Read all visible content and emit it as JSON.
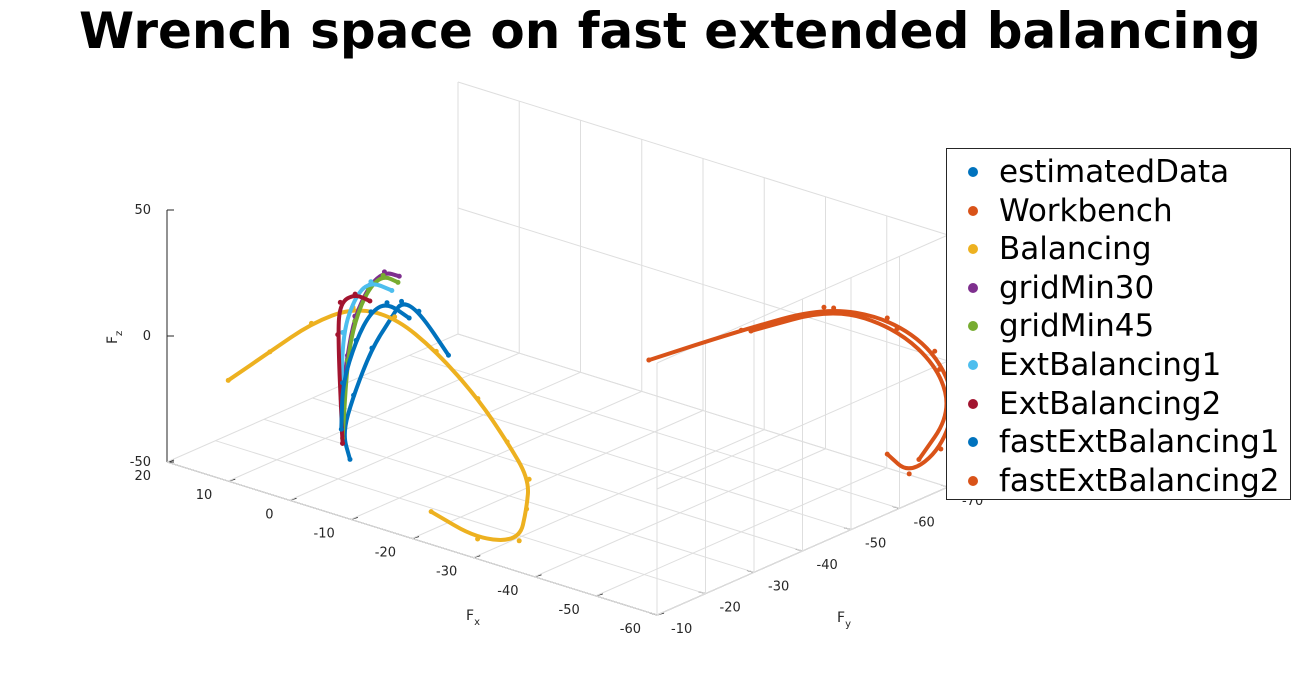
{
  "chart_data": {
    "type": "scatter",
    "title": "Wrench space on fast extended balancing",
    "xlabel": "F",
    "xlabel_sub": "x",
    "ylabel": "F",
    "ylabel_sub": "y",
    "zlabel": "F",
    "zlabel_sub": "z",
    "xlim": [
      -60,
      20
    ],
    "ylim": [
      -70,
      -10
    ],
    "zlim": [
      -50,
      50
    ],
    "xticks": [
      "20",
      "10",
      "0",
      "-10",
      "-20",
      "-30",
      "-40",
      "-50",
      "-60"
    ],
    "yticks": [
      "-10",
      "-20",
      "-30",
      "-40",
      "-50",
      "-60",
      "-70"
    ],
    "zticks": [
      "50",
      "0",
      "-50"
    ],
    "grid": true,
    "legend_position": "right",
    "series": [
      {
        "name": "estimatedData",
        "color": "#0072bd",
        "x": [
          -22,
          -14,
          -8,
          -4,
          0,
          3,
          4,
          2
        ],
        "y": [
          -15,
          -19,
          -23,
          -26,
          -27,
          -27,
          -26,
          -25
        ],
        "z": [
          20,
          28,
          24,
          12,
          -4,
          -25,
          -40,
          -48
        ]
      },
      {
        "name": "Workbench",
        "color": "#d95319",
        "x": [
          -46,
          -50,
          -54,
          -58,
          -61,
          -63,
          -62,
          -60,
          -58
        ],
        "y": [
          -26,
          -40,
          -52,
          -60,
          -66,
          -68,
          -66,
          -62,
          -60
        ],
        "z": [
          27,
          30,
          32,
          24,
          8,
          -12,
          -30,
          -38,
          -30
        ]
      },
      {
        "name": "Balancing",
        "color": "#edb120",
        "x": [
          10,
          4,
          -2,
          -8,
          -14,
          -20,
          -26,
          -30,
          -32,
          -30,
          -28,
          -22,
          -16
        ],
        "y": [
          -10,
          -11,
          -12,
          -13,
          -14,
          -15,
          -16,
          -17,
          -19,
          -21,
          -22,
          -21,
          -19
        ],
        "z": [
          -10,
          5,
          20,
          30,
          30,
          20,
          5,
          -10,
          -25,
          -40,
          -55,
          -58,
          -50
        ]
      },
      {
        "name": "gridMin30",
        "color": "#7e2f8e",
        "x": [
          -10,
          -6,
          -2,
          2,
          4,
          5,
          4
        ],
        "y": [
          -20,
          -22,
          -24,
          -26,
          -27,
          -27,
          -26
        ],
        "z": [
          38,
          35,
          25,
          8,
          -10,
          -28,
          -44
        ]
      },
      {
        "name": "gridMin45",
        "color": "#77ac30",
        "x": [
          -9,
          -5,
          -1,
          2,
          4,
          4
        ],
        "y": [
          -21,
          -23,
          -25,
          -26,
          -27,
          -26
        ],
        "z": [
          34,
          32,
          22,
          6,
          -12,
          -42
        ]
      },
      {
        "name": "ExtBalancing1",
        "color": "#4dbeee",
        "x": [
          -8,
          -3,
          1,
          4,
          5
        ],
        "y": [
          -21,
          -23,
          -25,
          -26,
          -27
        ],
        "z": [
          30,
          28,
          18,
          0,
          -30
        ]
      },
      {
        "name": "ExtBalancing2",
        "color": "#a2142f",
        "x": [
          -6,
          -2,
          2,
          4,
          4
        ],
        "y": [
          -19,
          -21,
          -23,
          -25,
          -26
        ],
        "z": [
          26,
          24,
          16,
          0,
          -44
        ]
      },
      {
        "name": "fastExtBalancing1",
        "color": "#0072bd",
        "x": [
          -14,
          -8,
          -3,
          1,
          4,
          5
        ],
        "y": [
          -17,
          -20,
          -23,
          -25,
          -26,
          -27
        ],
        "z": [
          27,
          26,
          16,
          0,
          -20,
          -40
        ]
      },
      {
        "name": "fastExtBalancing2",
        "color": "#d95319",
        "x": [
          -50,
          -54,
          -58,
          -61,
          -62,
          -60
        ],
        "y": [
          -42,
          -54,
          -62,
          -67,
          -68,
          -64
        ],
        "z": [
          28,
          30,
          18,
          0,
          -18,
          -34
        ]
      }
    ]
  }
}
